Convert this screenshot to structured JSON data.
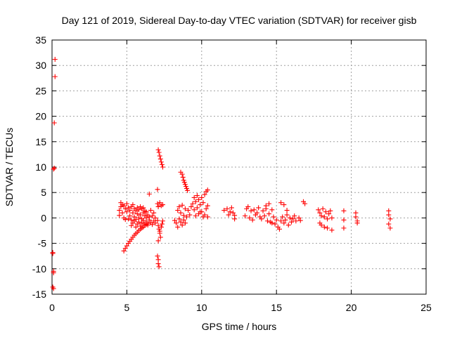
{
  "chart_data": {
    "type": "scatter",
    "title": "Day 121 of 2019, Sidereal Day-to-day VTEC variation (SDTVAR) for receiver gisb",
    "xlabel": "GPS time / hours",
    "ylabel": "SDTVAR / TECUs",
    "xlim": [
      0,
      25
    ],
    "ylim": [
      -15,
      35
    ],
    "x_ticks": [
      0,
      5,
      10,
      15,
      20,
      25
    ],
    "y_ticks": [
      -15,
      -10,
      -5,
      0,
      5,
      10,
      15,
      20,
      25,
      30,
      35
    ],
    "x_tick_labels": [
      "0",
      "5",
      "10",
      "15",
      "20",
      "25"
    ],
    "y_tick_labels": [
      "-15",
      "-10",
      "-5",
      "0",
      "5",
      "10",
      "15",
      "20",
      "25",
      "30",
      "35"
    ],
    "grid": true,
    "marker": "+",
    "color": "#ff0000",
    "series": [
      {
        "name": "SDTVAR",
        "points": [
          [
            0.05,
            -6.8
          ],
          [
            0.05,
            -7.0
          ],
          [
            0.1,
            -10.5
          ],
          [
            0.1,
            -10.8
          ],
          [
            0.05,
            -13.6
          ],
          [
            0.1,
            -13.9
          ],
          [
            0.1,
            9.6
          ],
          [
            0.15,
            9.8
          ],
          [
            0.15,
            18.7
          ],
          [
            0.2,
            27.8
          ],
          [
            0.2,
            31.2
          ],
          [
            4.5,
            0.5
          ],
          [
            4.5,
            1.5
          ],
          [
            4.6,
            2.2
          ],
          [
            4.6,
            3.0
          ],
          [
            4.7,
            1.0
          ],
          [
            4.7,
            2.6
          ],
          [
            4.8,
            0.0
          ],
          [
            4.8,
            2.4
          ],
          [
            4.9,
            1.8
          ],
          [
            4.9,
            -0.3
          ],
          [
            5.0,
            2.8
          ],
          [
            5.0,
            1.2
          ],
          [
            5.1,
            -0.2
          ],
          [
            5.1,
            2.0
          ],
          [
            5.2,
            1.5
          ],
          [
            5.2,
            0.4
          ],
          [
            5.3,
            2.2
          ],
          [
            5.3,
            -0.4
          ],
          [
            5.4,
            1.0
          ],
          [
            5.4,
            2.6
          ],
          [
            5.5,
            0.2
          ],
          [
            5.5,
            1.8
          ],
          [
            5.6,
            1.4
          ],
          [
            5.6,
            -0.3
          ],
          [
            5.7,
            2.0
          ],
          [
            5.7,
            0.8
          ],
          [
            5.8,
            1.6
          ],
          [
            5.8,
            0.0
          ],
          [
            5.9,
            2.2
          ],
          [
            5.9,
            0.6
          ],
          [
            6.0,
            1.8
          ],
          [
            6.0,
            -0.2
          ],
          [
            6.1,
            1.0
          ],
          [
            6.1,
            2.0
          ],
          [
            6.2,
            0.4
          ],
          [
            6.2,
            1.4
          ],
          [
            6.3,
            0.0
          ],
          [
            6.3,
            1.2
          ],
          [
            6.4,
            0.6
          ],
          [
            6.5,
            0.2
          ],
          [
            6.6,
            1.5
          ],
          [
            6.7,
            0.4
          ],
          [
            6.8,
            1.0
          ],
          [
            6.9,
            0.0
          ],
          [
            4.8,
            -6.5
          ],
          [
            4.9,
            -6.0
          ],
          [
            5.0,
            -5.5
          ],
          [
            5.1,
            -5.0
          ],
          [
            5.2,
            -4.6
          ],
          [
            5.3,
            -4.2
          ],
          [
            5.4,
            -3.8
          ],
          [
            5.5,
            -3.4
          ],
          [
            5.6,
            -3.1
          ],
          [
            5.7,
            -2.8
          ],
          [
            5.8,
            -2.5
          ],
          [
            5.9,
            -2.2
          ],
          [
            6.0,
            -2.0
          ],
          [
            6.1,
            -1.8
          ],
          [
            6.2,
            -1.5
          ],
          [
            6.3,
            -1.3
          ],
          [
            6.4,
            -1.1
          ],
          [
            5.3,
            -1.5
          ],
          [
            5.4,
            -1.0
          ],
          [
            5.5,
            -0.6
          ],
          [
            5.6,
            -1.8
          ],
          [
            5.7,
            -1.2
          ],
          [
            5.8,
            -0.8
          ],
          [
            5.9,
            -1.6
          ],
          [
            6.0,
            -1.0
          ],
          [
            6.1,
            -0.5
          ],
          [
            6.2,
            -1.2
          ],
          [
            6.3,
            -0.8
          ],
          [
            6.4,
            -1.4
          ],
          [
            6.5,
            -0.4
          ],
          [
            6.6,
            -0.9
          ],
          [
            6.7,
            -1.3
          ],
          [
            6.8,
            -0.6
          ],
          [
            6.9,
            -1.0
          ],
          [
            6.5,
            4.7
          ],
          [
            7.05,
            5.6
          ],
          [
            7.1,
            13.4
          ],
          [
            7.15,
            12.9
          ],
          [
            7.2,
            12.2
          ],
          [
            7.25,
            11.6
          ],
          [
            7.3,
            11.0
          ],
          [
            7.35,
            10.5
          ],
          [
            7.4,
            10.0
          ],
          [
            7.05,
            2.8
          ],
          [
            7.1,
            2.2
          ],
          [
            7.2,
            3.0
          ],
          [
            7.3,
            2.4
          ],
          [
            7.4,
            2.6
          ],
          [
            7.05,
            -0.5
          ],
          [
            7.1,
            -1.5
          ],
          [
            7.15,
            -2.2
          ],
          [
            7.2,
            -3.0
          ],
          [
            7.25,
            -3.8
          ],
          [
            7.1,
            -4.5
          ],
          [
            7.05,
            -7.5
          ],
          [
            7.1,
            -8.2
          ],
          [
            7.1,
            -9.0
          ],
          [
            7.15,
            -9.6
          ],
          [
            7.2,
            -2.6
          ],
          [
            7.3,
            -1.8
          ],
          [
            7.35,
            -1.2
          ],
          [
            7.4,
            -0.6
          ],
          [
            8.2,
            -0.5
          ],
          [
            8.3,
            -1.0
          ],
          [
            8.4,
            -1.8
          ],
          [
            8.5,
            -0.2
          ],
          [
            8.6,
            -0.8
          ],
          [
            8.7,
            -1.4
          ],
          [
            8.8,
            -0.4
          ],
          [
            8.9,
            -1.0
          ],
          [
            8.6,
            9.0
          ],
          [
            8.7,
            8.6
          ],
          [
            8.75,
            8.0
          ],
          [
            8.8,
            7.4
          ],
          [
            8.85,
            7.0
          ],
          [
            8.9,
            6.6
          ],
          [
            8.95,
            6.2
          ],
          [
            9.0,
            5.8
          ],
          [
            9.05,
            5.4
          ],
          [
            8.4,
            1.5
          ],
          [
            8.5,
            2.2
          ],
          [
            8.6,
            1.0
          ],
          [
            8.7,
            2.5
          ],
          [
            8.8,
            0.5
          ],
          [
            8.9,
            1.8
          ],
          [
            9.0,
            0.2
          ],
          [
            9.1,
            1.5
          ],
          [
            9.2,
            0.6
          ],
          [
            9.3,
            2.2
          ],
          [
            9.4,
            2.8
          ],
          [
            9.5,
            1.6
          ],
          [
            9.6,
            3.2
          ],
          [
            9.7,
            2.0
          ],
          [
            9.8,
            3.6
          ],
          [
            9.9,
            2.6
          ],
          [
            10.0,
            4.0
          ],
          [
            10.1,
            3.0
          ],
          [
            10.2,
            4.6
          ],
          [
            10.3,
            5.2
          ],
          [
            10.4,
            5.5
          ],
          [
            9.6,
            0.4
          ],
          [
            9.8,
            0.8
          ],
          [
            10.0,
            1.2
          ],
          [
            10.2,
            0.6
          ],
          [
            10.3,
            1.8
          ],
          [
            10.4,
            2.4
          ],
          [
            9.5,
            4.0
          ],
          [
            9.7,
            4.4
          ],
          [
            9.9,
            1.2
          ],
          [
            10.1,
            0.2
          ],
          [
            10.4,
            0.2
          ],
          [
            11.5,
            1.5
          ],
          [
            11.7,
            1.8
          ],
          [
            11.9,
            1.2
          ],
          [
            11.8,
            0.6
          ],
          [
            12.0,
            2.0
          ],
          [
            12.1,
            1.0
          ],
          [
            12.2,
            0.5
          ],
          [
            12.2,
            -0.2
          ],
          [
            12.9,
            0.4
          ],
          [
            13.0,
            1.8
          ],
          [
            13.1,
            2.2
          ],
          [
            13.2,
            0.0
          ],
          [
            13.3,
            1.4
          ],
          [
            13.4,
            -0.4
          ],
          [
            13.5,
            1.6
          ],
          [
            13.6,
            0.6
          ],
          [
            13.7,
            1.0
          ],
          [
            13.8,
            2.0
          ],
          [
            13.9,
            0.2
          ],
          [
            14.0,
            -0.2
          ],
          [
            14.1,
            1.4
          ],
          [
            14.2,
            0.4
          ],
          [
            14.3,
            1.8
          ],
          [
            14.4,
            -0.6
          ],
          [
            14.5,
            0.8
          ],
          [
            14.6,
            -0.8
          ],
          [
            14.7,
            -1.0
          ],
          [
            14.8,
            0.2
          ],
          [
            14.9,
            -1.2
          ],
          [
            15.0,
            -0.4
          ],
          [
            14.3,
            2.4
          ],
          [
            14.5,
            2.8
          ],
          [
            14.7,
            1.6
          ],
          [
            15.1,
            -1.8
          ],
          [
            15.2,
            -2.2
          ],
          [
            15.3,
            -0.6
          ],
          [
            15.4,
            0.2
          ],
          [
            15.5,
            -1.0
          ],
          [
            15.6,
            -0.4
          ],
          [
            15.7,
            0.6
          ],
          [
            15.8,
            -1.4
          ],
          [
            15.9,
            0.0
          ],
          [
            16.0,
            -0.8
          ],
          [
            16.1,
            -0.2
          ],
          [
            16.2,
            0.4
          ],
          [
            16.3,
            -0.6
          ],
          [
            16.5,
            0.0
          ],
          [
            16.6,
            -0.5
          ],
          [
            15.3,
            3.0
          ],
          [
            15.5,
            2.6
          ],
          [
            15.7,
            1.5
          ],
          [
            16.8,
            3.2
          ],
          [
            16.9,
            2.8
          ],
          [
            17.8,
            1.6
          ],
          [
            17.9,
            1.0
          ],
          [
            18.0,
            0.4
          ],
          [
            18.1,
            1.8
          ],
          [
            18.2,
            0.2
          ],
          [
            18.3,
            1.2
          ],
          [
            18.4,
            -0.2
          ],
          [
            18.5,
            0.8
          ],
          [
            18.6,
            1.4
          ],
          [
            18.7,
            0.0
          ],
          [
            17.9,
            -1.0
          ],
          [
            18.0,
            -1.4
          ],
          [
            18.2,
            -1.8
          ],
          [
            18.4,
            -2.0
          ],
          [
            18.7,
            -2.4
          ],
          [
            19.5,
            1.4
          ],
          [
            19.5,
            -0.4
          ],
          [
            19.5,
            -2.0
          ],
          [
            20.3,
            1.0
          ],
          [
            20.3,
            0.2
          ],
          [
            20.4,
            -0.6
          ],
          [
            20.4,
            -1.0
          ],
          [
            22.5,
            1.4
          ],
          [
            22.5,
            0.6
          ],
          [
            22.6,
            -0.2
          ],
          [
            22.5,
            -1.2
          ],
          [
            22.6,
            -2.0
          ]
        ]
      }
    ]
  }
}
